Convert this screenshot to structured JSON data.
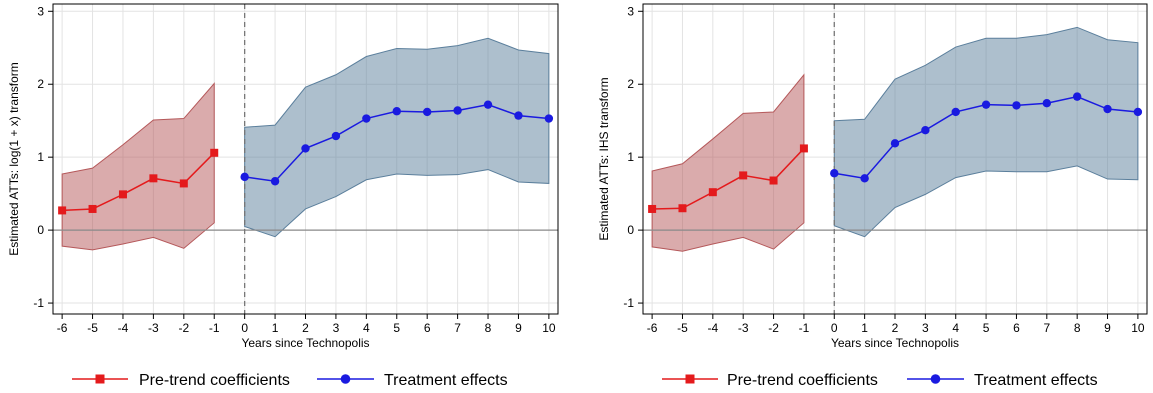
{
  "chart_data": [
    {
      "type": "line",
      "title": "",
      "xlabel": "Years since Technopolis",
      "ylabel": "Estimated ATTs: log(1 + x) transform",
      "xlim": [
        -6.3,
        10.3
      ],
      "ylim": [
        -1.15,
        3.1
      ],
      "x_ticks": [
        -6,
        -5,
        -4,
        -3,
        -2,
        -1,
        0,
        1,
        2,
        3,
        4,
        5,
        6,
        7,
        8,
        9,
        10
      ],
      "y_ticks": [
        -1,
        0,
        1,
        2,
        3
      ],
      "grid": true,
      "vline": 0,
      "hline": 0,
      "legend": "bottom",
      "series": [
        {
          "name": "Pre-trend coefficients",
          "color": "#e41a1c",
          "band_color": "#b5585a",
          "marker": "square",
          "x": [
            -6,
            -5,
            -4,
            -3,
            -2,
            -1
          ],
          "y": [
            0.27,
            0.29,
            0.49,
            0.71,
            0.64,
            1.06
          ],
          "lower": [
            -0.22,
            -0.27,
            -0.19,
            -0.1,
            -0.25,
            0.1
          ],
          "upper": [
            0.77,
            0.85,
            1.17,
            1.51,
            1.53,
            2.01
          ]
        },
        {
          "name": "Treatment effects",
          "color": "#1a1ae0",
          "band_color": "#5b7f9c",
          "marker": "circle",
          "x": [
            0,
            1,
            2,
            3,
            4,
            5,
            6,
            7,
            8,
            9,
            10
          ],
          "y": [
            0.73,
            0.67,
            1.12,
            1.29,
            1.53,
            1.63,
            1.62,
            1.64,
            1.72,
            1.57,
            1.53
          ],
          "lower": [
            0.05,
            -0.09,
            0.29,
            0.46,
            0.69,
            0.77,
            0.75,
            0.76,
            0.83,
            0.66,
            0.64
          ],
          "upper": [
            1.41,
            1.44,
            1.96,
            2.13,
            2.38,
            2.49,
            2.48,
            2.53,
            2.63,
            2.47,
            2.42
          ]
        }
      ]
    },
    {
      "type": "line",
      "title": "",
      "xlabel": "Years since Technopolis",
      "ylabel": "Estimated ATTs: IHS transform",
      "xlim": [
        -6.3,
        10.3
      ],
      "ylim": [
        -1.15,
        3.1
      ],
      "x_ticks": [
        -6,
        -5,
        -4,
        -3,
        -2,
        -1,
        0,
        1,
        2,
        3,
        4,
        5,
        6,
        7,
        8,
        9,
        10
      ],
      "y_ticks": [
        -1,
        0,
        1,
        2,
        3
      ],
      "grid": true,
      "vline": 0,
      "hline": 0,
      "legend": "bottom",
      "series": [
        {
          "name": "Pre-trend coefficients",
          "color": "#e41a1c",
          "band_color": "#b5585a",
          "marker": "square",
          "x": [
            -6,
            -5,
            -4,
            -3,
            -2,
            -1
          ],
          "y": [
            0.29,
            0.3,
            0.52,
            0.75,
            0.68,
            1.12
          ],
          "lower": [
            -0.23,
            -0.29,
            -0.19,
            -0.1,
            -0.26,
            0.1
          ],
          "upper": [
            0.81,
            0.91,
            1.25,
            1.6,
            1.62,
            2.13
          ]
        },
        {
          "name": "Treatment effects",
          "color": "#1a1ae0",
          "band_color": "#5b7f9c",
          "marker": "circle",
          "x": [
            0,
            1,
            2,
            3,
            4,
            5,
            6,
            7,
            8,
            9,
            10
          ],
          "y": [
            0.78,
            0.71,
            1.19,
            1.37,
            1.62,
            1.72,
            1.71,
            1.74,
            1.83,
            1.66,
            1.62
          ],
          "lower": [
            0.06,
            -0.09,
            0.31,
            0.49,
            0.72,
            0.81,
            0.8,
            0.8,
            0.88,
            0.7,
            0.69
          ],
          "upper": [
            1.5,
            1.52,
            2.07,
            2.26,
            2.51,
            2.63,
            2.63,
            2.68,
            2.78,
            2.61,
            2.57
          ]
        }
      ]
    }
  ]
}
